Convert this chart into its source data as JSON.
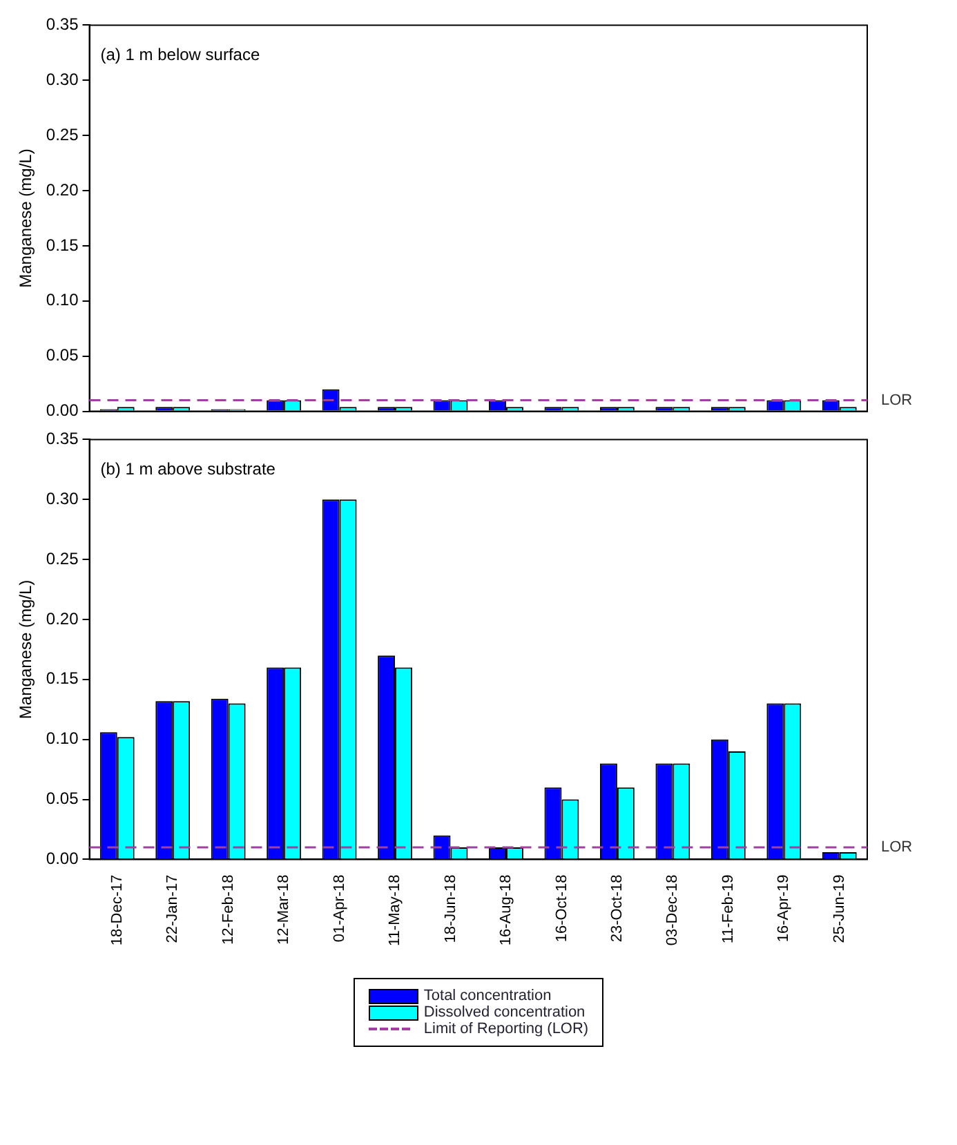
{
  "chart_data": [
    {
      "type": "bar",
      "title": "(a) 1 m below surface",
      "ylabel": "Manganese (mg/L)",
      "categories": [
        null,
        null,
        null,
        null,
        null,
        null,
        null,
        null,
        null,
        null,
        null,
        null,
        null,
        null
      ],
      "series": [
        {
          "color": "#0000ff",
          "values": [
            0.002,
            0.004,
            0.002,
            0.01,
            0.02,
            0.004,
            0.01,
            0.01,
            0.004,
            0.004,
            0.004,
            0.004,
            0.01,
            0.01
          ]
        },
        {
          "color": "#00ffff",
          "values": [
            0.004,
            0.004,
            0.002,
            0.01,
            0.004,
            0.004,
            0.01,
            0.004,
            0.004,
            0.004,
            0.004,
            0.004,
            0.01,
            0.004
          ]
        }
      ],
      "ylim": [
        0,
        0.35
      ],
      "yticks": [
        {
          "value": 0,
          "label": "0.00"
        },
        0.05,
        {
          "value": 0.1,
          "label": "0.10"
        },
        0.15,
        {
          "value": 0.2,
          "label": "0.20"
        },
        0.25,
        {
          "value": 0.3,
          "label": "0.30"
        },
        0.35
      ],
      "tick_labels": "y",
      "grid": false,
      "ref_lines": [
        {
          "axis": "y",
          "value": 0.01,
          "label": "LOR",
          "color": "#a040a0",
          "line_style": "dashed"
        }
      ]
    },
    {
      "type": "bar",
      "title": "(b) 1 m above substrate",
      "ylabel": "Manganese (mg/L)",
      "categories": [
        "18-Dec-17",
        "22-Jan-17",
        "12-Feb-18",
        "12-Mar-18",
        "01-Apr-18",
        "11-May-18",
        "18-Jun-18",
        "16-Aug-18",
        "16-Oct-18",
        "23-Oct-18",
        "03-Dec-18",
        "11-Feb-19",
        "16-Apr-19",
        "25-Jun-19"
      ],
      "series": [
        {
          "name": "Total concentration",
          "color": "#0000ff",
          "values": [
            0.106,
            0.132,
            0.134,
            0.16,
            0.3,
            0.17,
            0.02,
            0.01,
            0.06,
            0.08,
            0.08,
            0.1,
            0.13,
            0.006
          ]
        },
        {
          "name": "Dissolved concentration",
          "color": "#00ffff",
          "values": [
            0.102,
            0.132,
            0.13,
            0.16,
            0.3,
            0.16,
            0.01,
            0.01,
            0.05,
            0.06,
            0.08,
            0.09,
            0.13,
            0.006
          ]
        }
      ],
      "ylim": [
        0,
        0.35
      ],
      "yticks": [
        {
          "value": 0,
          "label": "0.00"
        },
        0.05,
        {
          "value": 0.1,
          "label": "0.10"
        },
        0.15,
        {
          "value": 0.2,
          "label": "0.20"
        },
        0.25,
        {
          "value": 0.3,
          "label": "0.30"
        },
        0.35
      ],
      "grid": false,
      "legend": "bottom",
      "ref_lines": [
        {
          "axis": "y",
          "value": 0.01,
          "label": "LOR",
          "color": "#a040a0",
          "line_style": "dashed"
        }
      ],
      "annotations": [
        "Limit of Reporting (LOR)"
      ]
    }
  ]
}
